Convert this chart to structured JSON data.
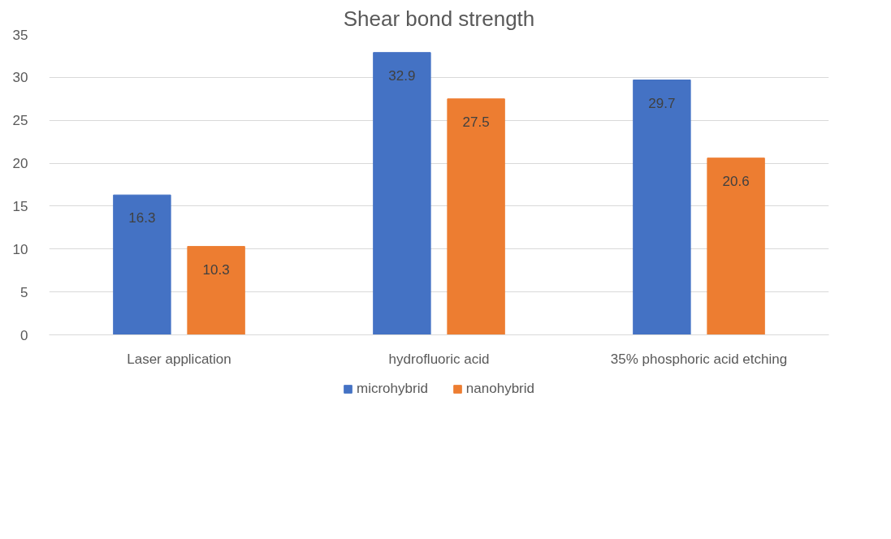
{
  "chart_data": {
    "type": "bar",
    "title": "Shear bond strength",
    "categories": [
      "Laser application",
      "hydrofluoric acid",
      "35% phosphoric acid etching"
    ],
    "series": [
      {
        "name": "microhybrid",
        "color": "#4472c4",
        "values": [
          16.3,
          32.9,
          29.7
        ]
      },
      {
        "name": "nanohybrid",
        "color": "#ed7d31",
        "values": [
          10.3,
          27.5,
          20.6
        ]
      }
    ],
    "ylim": [
      0,
      35
    ],
    "yticks": [
      0,
      5,
      10,
      15,
      20,
      25,
      30,
      35
    ],
    "grid": "y",
    "legend": "bottom",
    "data_labels": true
  }
}
